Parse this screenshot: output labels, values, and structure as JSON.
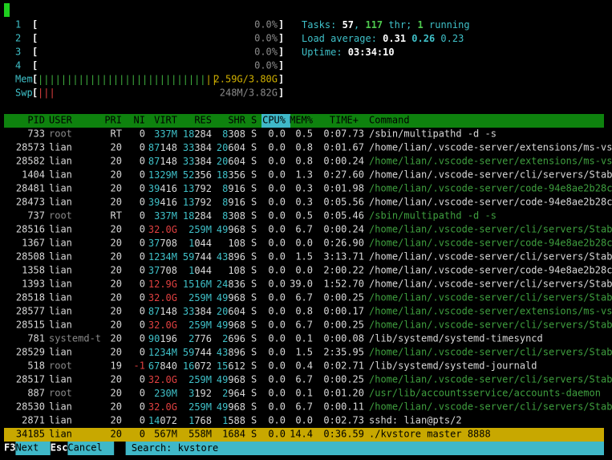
{
  "meters": {
    "cpus": [
      {
        "label": "1",
        "value": "0.0%"
      },
      {
        "label": "2",
        "value": "0.0%"
      },
      {
        "label": "3",
        "value": "0.0%"
      },
      {
        "label": "4",
        "value": "0.0%"
      }
    ],
    "mem": {
      "label": "Mem",
      "value": "2.59G/3.80G"
    },
    "swp": {
      "label": "Swp",
      "value": "248M/3.82G"
    }
  },
  "summary": {
    "tasks": [
      {
        "text": "Tasks: ",
        "style": "cyan"
      },
      {
        "text": "57",
        "style": "bold"
      },
      {
        "text": ", ",
        "style": "cyan"
      },
      {
        "text": "117",
        "style": "green-bold"
      },
      {
        "text": " thr; ",
        "style": "cyan"
      },
      {
        "text": "1",
        "style": "green-bold"
      },
      {
        "text": " running",
        "style": "cyan"
      }
    ],
    "load": [
      {
        "text": "Load average: ",
        "style": "cyan"
      },
      {
        "text": "0.31 ",
        "style": "bold"
      },
      {
        "text": "0.26 ",
        "style": "cyan-bold"
      },
      {
        "text": "0.23",
        "style": "cyan"
      }
    ],
    "uptime": [
      {
        "text": "Uptime: ",
        "style": "cyan"
      },
      {
        "text": "03:34:10",
        "style": "bold"
      }
    ]
  },
  "table": {
    "columns": [
      "PID",
      "USER",
      "PRI",
      "NI",
      "VIRT",
      "RES",
      "SHR",
      "S",
      "CPU%",
      "MEM%",
      "TIME+",
      "Command"
    ],
    "sort_column": 8,
    "selected_row": 22,
    "rows": [
      {
        "cells": [
          "733",
          "root",
          "RT",
          "0",
          "337M",
          "18284",
          "8308",
          "S",
          "0.0",
          "0.5",
          "0:07.73",
          "/sbin/multipathd -d -s"
        ],
        "thread": false
      },
      {
        "cells": [
          "28573",
          "lian",
          "20",
          "0",
          "87148",
          "33384",
          "20604",
          "S",
          "0.0",
          "0.8",
          "0:01.67",
          "/home/lian/.vscode-server/extensions/ms-vs"
        ],
        "thread": false
      },
      {
        "cells": [
          "28582",
          "lian",
          "20",
          "0",
          "87148",
          "33384",
          "20604",
          "S",
          "0.0",
          "0.8",
          "0:00.24",
          "/home/lian/.vscode-server/extensions/ms-vs"
        ],
        "thread": true
      },
      {
        "cells": [
          "1404",
          "lian",
          "20",
          "0",
          "1329M",
          "52356",
          "18356",
          "S",
          "0.0",
          "1.3",
          "0:27.60",
          "/home/lian/.vscode-server/cli/servers/Stab"
        ],
        "thread": false
      },
      {
        "cells": [
          "28481",
          "lian",
          "20",
          "0",
          "39416",
          "13792",
          "8916",
          "S",
          "0.0",
          "0.3",
          "0:01.98",
          "/home/lian/.vscode-server/code-94e8ae2b28c"
        ],
        "thread": true
      },
      {
        "cells": [
          "28473",
          "lian",
          "20",
          "0",
          "39416",
          "13792",
          "8916",
          "S",
          "0.0",
          "0.3",
          "0:05.56",
          "/home/lian/.vscode-server/code-94e8ae2b28c"
        ],
        "thread": false
      },
      {
        "cells": [
          "737",
          "root",
          "RT",
          "0",
          "337M",
          "18284",
          "8308",
          "S",
          "0.0",
          "0.5",
          "0:05.46",
          "/sbin/multipathd -d -s"
        ],
        "thread": true
      },
      {
        "cells": [
          "28516",
          "lian",
          "20",
          "0",
          "32.0G",
          "259M",
          "49968",
          "S",
          "0.0",
          "6.7",
          "0:00.24",
          "/home/lian/.vscode-server/cli/servers/Stab"
        ],
        "thread": true
      },
      {
        "cells": [
          "1367",
          "lian",
          "20",
          "0",
          "37708",
          "1044",
          "108",
          "S",
          "0.0",
          "0.0",
          "0:26.90",
          "/home/lian/.vscode-server/code-94e8ae2b28c"
        ],
        "thread": true
      },
      {
        "cells": [
          "28508",
          "lian",
          "20",
          "0",
          "1234M",
          "59744",
          "43896",
          "S",
          "0.0",
          "1.5",
          "3:13.71",
          "/home/lian/.vscode-server/cli/servers/Stab"
        ],
        "thread": false
      },
      {
        "cells": [
          "1358",
          "lian",
          "20",
          "0",
          "37708",
          "1044",
          "108",
          "S",
          "0.0",
          "0.0",
          "2:00.22",
          "/home/lian/.vscode-server/code-94e8ae2b28c"
        ],
        "thread": false
      },
      {
        "cells": [
          "1393",
          "lian",
          "20",
          "0",
          "12.9G",
          "1516M",
          "24836",
          "S",
          "0.0",
          "39.0",
          "1:52.70",
          "/home/lian/.vscode-server/cli/servers/Stab"
        ],
        "thread": false
      },
      {
        "cells": [
          "28518",
          "lian",
          "20",
          "0",
          "32.0G",
          "259M",
          "49968",
          "S",
          "0.0",
          "6.7",
          "0:00.25",
          "/home/lian/.vscode-server/cli/servers/Stab"
        ],
        "thread": true
      },
      {
        "cells": [
          "28577",
          "lian",
          "20",
          "0",
          "87148",
          "33384",
          "20604",
          "S",
          "0.0",
          "0.8",
          "0:00.17",
          "/home/lian/.vscode-server/extensions/ms-vs"
        ],
        "thread": true
      },
      {
        "cells": [
          "28515",
          "lian",
          "20",
          "0",
          "32.0G",
          "259M",
          "49968",
          "S",
          "0.0",
          "6.7",
          "0:00.25",
          "/home/lian/.vscode-server/cli/servers/Stab"
        ],
        "thread": true
      },
      {
        "cells": [
          "781",
          "systemd-t",
          "20",
          "0",
          "90196",
          "2776",
          "2696",
          "S",
          "0.0",
          "0.1",
          "0:00.08",
          "/lib/systemd/systemd-timesyncd"
        ],
        "thread": false
      },
      {
        "cells": [
          "28529",
          "lian",
          "20",
          "0",
          "1234M",
          "59744",
          "43896",
          "S",
          "0.0",
          "1.5",
          "2:35.95",
          "/home/lian/.vscode-server/cli/servers/Stab"
        ],
        "thread": true
      },
      {
        "cells": [
          "518",
          "root",
          "19",
          "-1",
          "67840",
          "16072",
          "15612",
          "S",
          "0.0",
          "0.4",
          "0:02.71",
          "/lib/systemd/systemd-journald"
        ],
        "thread": false
      },
      {
        "cells": [
          "28517",
          "lian",
          "20",
          "0",
          "32.0G",
          "259M",
          "49968",
          "S",
          "0.0",
          "6.7",
          "0:00.25",
          "/home/lian/.vscode-server/cli/servers/Stab"
        ],
        "thread": true
      },
      {
        "cells": [
          "887",
          "root",
          "20",
          "0",
          "230M",
          "3192",
          "2964",
          "S",
          "0.0",
          "0.1",
          "0:01.20",
          "/usr/lib/accountsservice/accounts-daemon"
        ],
        "thread": true
      },
      {
        "cells": [
          "28530",
          "lian",
          "20",
          "0",
          "32.0G",
          "259M",
          "49968",
          "S",
          "0.0",
          "6.7",
          "0:00.11",
          "/home/lian/.vscode-server/cli/servers/Stab"
        ],
        "thread": true
      },
      {
        "cells": [
          "2871",
          "lian",
          "20",
          "0",
          "14072",
          "1768",
          "1588",
          "S",
          "0.0",
          "0.0",
          "0:02.73",
          "sshd: lian@pts/2"
        ],
        "thread": false
      },
      {
        "cells": [
          "34185",
          "lian",
          "20",
          "0",
          "567M",
          "558M",
          "1684",
          "S",
          "0.0",
          "14.4",
          "0:36.59",
          "./kvstore master 8888"
        ],
        "thread": false
      }
    ]
  },
  "footer": {
    "keys": [
      {
        "key": "F3",
        "action": "Next"
      },
      {
        "key": "Esc",
        "action": "Cancel"
      }
    ],
    "search_label": "Search: ",
    "search_text": "kvstore"
  }
}
